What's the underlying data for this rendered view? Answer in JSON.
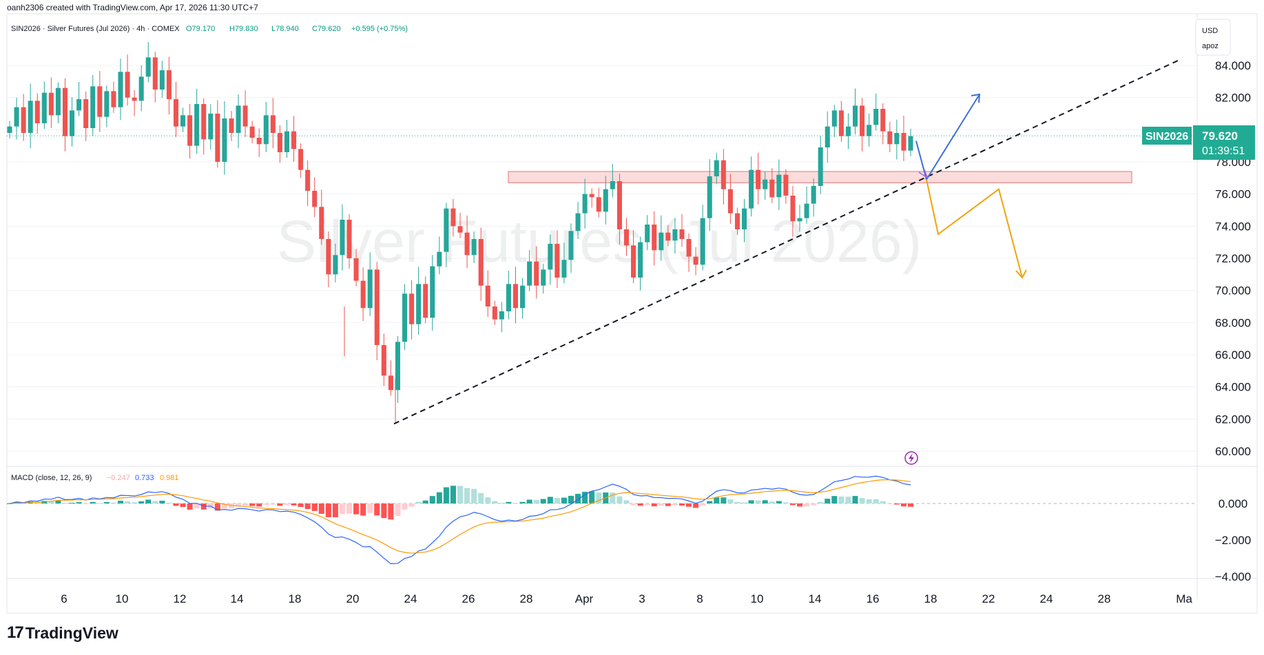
{
  "header": {
    "created_by": "oanh2306 created with TradingView.com, Apr 17, 2026 11:30 UTC+7",
    "symbol_line": "SIN2026 · Silver Futures (Jul 2026) · 4h · COMEX",
    "ohlc": {
      "o": "O79.170",
      "h": "H79.830",
      "l": "L78.940",
      "c": "C79.620",
      "change": "+0.595 (+0.75%)"
    }
  },
  "watermark": "Silver Futures (Jul 2026)",
  "scale_box": {
    "currency": "USD",
    "unit": "apoz"
  },
  "price_label": {
    "symbol": "SIN2026",
    "price": "79.620",
    "countdown": "01:39:51"
  },
  "macd": {
    "title": "MACD (close, 12, 26, 9)",
    "hist": "−0.247",
    "macd": "0.733",
    "signal": "0.981"
  },
  "footer": {
    "logo_text": "TradingView",
    "logo_mark": "17"
  },
  "colors": {
    "bull": "#26a69a",
    "bear": "#ef5350",
    "macd_line": "#2962ff",
    "signal_line": "#ff9800",
    "zone": "#f8c9c9",
    "blue_arrow": "#3b6fd9",
    "orange_arrow": "#f0a30a",
    "price_tag": "#22ab94"
  },
  "chart_data": {
    "type": "candlestick",
    "interval": "4h",
    "y_axis": {
      "ticks": [
        "84.000",
        "82.000",
        "80.000",
        "78.000",
        "76.000",
        "74.000",
        "72.000",
        "70.000",
        "68.000",
        "66.000",
        "64.000",
        "62.000",
        "60.000"
      ],
      "ylim": [
        59,
        86
      ]
    },
    "x_axis": {
      "ticks": [
        "6",
        "10",
        "12",
        "14",
        "18",
        "20",
        "24",
        "26",
        "28",
        "Apr",
        "3",
        "8",
        "10",
        "14",
        "16",
        "18",
        "22",
        "24",
        "28",
        "Ma"
      ]
    },
    "macd_axis": {
      "ticks": [
        "0.000",
        "-2.000",
        "-4.000"
      ]
    },
    "resistance_zone": [
      76.7,
      77.4
    ],
    "trendline": [
      {
        "date": "Mar 23",
        "price": 61.7
      },
      {
        "date": "May 1",
        "price": 84.4
      }
    ],
    "scenario_up": [
      79.3,
      76.9,
      82.2
    ],
    "scenario_down": [
      76.9,
      73.5,
      76.3,
      70.8
    ],
    "close_path": [
      80.2,
      81.4,
      79.8,
      81.8,
      80.4,
      82.3,
      80.9,
      82.6,
      79.6,
      81.2,
      81.9,
      80.1,
      82.7,
      80.8,
      82.4,
      81.4,
      83.6,
      82.0,
      81.8,
      83.3,
      84.5,
      82.5,
      83.7,
      81.9,
      80.2,
      80.9,
      79.0,
      81.6,
      79.4,
      81.0,
      78.0,
      80.7,
      79.8,
      81.5,
      80.2,
      79.5,
      79.1,
      80.9,
      79.8,
      78.6,
      79.9,
      78.8,
      77.5,
      76.2,
      75.2,
      73.2,
      71.0,
      72.2,
      74.4,
      72.0,
      70.6,
      68.9,
      71.3,
      66.6,
      64.7,
      63.8,
      66.8,
      69.8,
      67.9,
      70.4,
      68.3,
      71.5,
      72.4,
      75.1,
      74.0,
      73.6,
      72.2,
      73.2,
      70.3,
      69.0,
      68.2,
      68.7,
      70.4,
      68.9,
      70.3,
      71.8,
      70.3,
      71.3,
      72.9,
      70.8,
      71.9,
      73.7,
      74.8,
      76.0,
      75.8,
      74.9,
      76.3,
      76.8,
      73.8,
      72.8,
      70.8,
      73.0,
      74.1,
      72.5,
      73.6,
      73.1,
      73.8,
      73.2,
      72.1,
      71.6,
      74.5,
      77.1,
      78.1,
      76.3,
      74.8,
      73.8,
      75.1,
      77.5,
      76.3,
      76.9,
      75.8,
      77.2,
      75.9,
      74.3,
      74.5,
      75.4,
      76.5,
      78.9,
      80.2,
      81.2,
      79.6,
      80.2,
      81.5,
      79.6,
      80.3,
      81.3,
      79.9,
      79.1,
      79.8,
      78.7,
      79.6
    ]
  }
}
